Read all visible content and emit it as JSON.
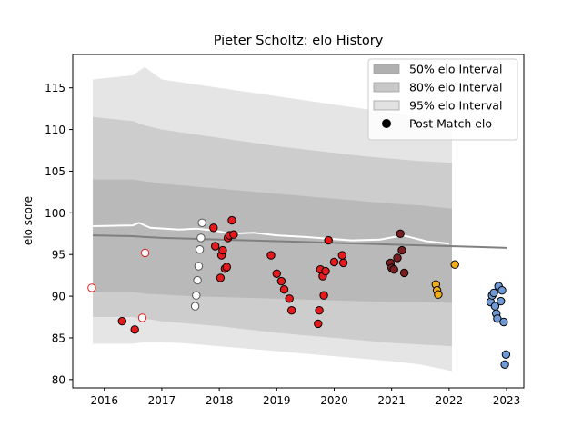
{
  "chart_data": {
    "type": "scatter",
    "title": "Pieter Scholtz: elo History",
    "xlabel": "",
    "ylabel": "elo score",
    "xlim": [
      2015.45,
      2023.3
    ],
    "ylim": [
      79.0,
      119.0
    ],
    "xticks": [
      2016,
      2017,
      2018,
      2019,
      2020,
      2021,
      2022,
      2023
    ],
    "yticks": [
      80,
      85,
      90,
      95,
      100,
      105,
      110,
      115
    ],
    "legend_position": "top-right",
    "legend": [
      {
        "label": "50% elo Interval",
        "kind": "band",
        "color": "#b0b0b0"
      },
      {
        "label": "80% elo Interval",
        "kind": "band",
        "color": "#c8c8c8"
      },
      {
        "label": "95% elo Interval",
        "kind": "band",
        "color": "#e2e2e2"
      },
      {
        "label": "Post Match elo",
        "kind": "marker",
        "color": "#000000"
      }
    ],
    "bands": {
      "x": [
        2015.8,
        2016.5,
        2016.7,
        2017.0,
        2017.5,
        2018.0,
        2018.5,
        2019.0,
        2019.5,
        2020.0,
        2020.5,
        2021.0,
        2021.5,
        2022.05
      ],
      "p95_upper": [
        116.0,
        116.5,
        117.5,
        116.0,
        115.5,
        115.0,
        114.5,
        114.0,
        113.5,
        113.0,
        112.5,
        112.0,
        111.5,
        111.0
      ],
      "p95_lower": [
        84.3,
        84.3,
        84.5,
        84.5,
        84.3,
        84.0,
        83.7,
        83.4,
        83.1,
        82.8,
        82.5,
        82.2,
        81.8,
        81.0
      ],
      "p80_upper": [
        111.5,
        111.0,
        110.5,
        110.0,
        109.5,
        109.0,
        108.5,
        108.0,
        107.6,
        107.2,
        106.8,
        106.5,
        106.2,
        106.0
      ],
      "p80_lower": [
        87.5,
        87.5,
        87.3,
        87.0,
        86.7,
        86.4,
        86.0,
        85.6,
        85.3,
        85.0,
        84.7,
        84.4,
        84.2,
        84.0
      ],
      "p50_upper": [
        104.0,
        104.0,
        103.8,
        103.5,
        103.2,
        102.9,
        102.6,
        102.3,
        102.0,
        101.7,
        101.4,
        101.1,
        100.9,
        100.5
      ],
      "p50_lower": [
        90.5,
        90.5,
        90.3,
        90.2,
        90.0,
        89.9,
        89.8,
        89.7,
        89.6,
        89.5,
        89.4,
        89.3,
        89.3,
        89.2
      ]
    },
    "mean_line": {
      "x": [
        2015.8,
        2016.5,
        2016.7,
        2017.0,
        2017.5,
        2018.0,
        2018.5,
        2019.0,
        2019.5,
        2020.0,
        2020.5,
        2021.0,
        2021.5,
        2022.0,
        2022.5,
        2023.0
      ],
      "y": [
        97.3,
        97.2,
        97.1,
        97.0,
        96.9,
        96.8,
        96.7,
        96.6,
        96.5,
        96.4,
        96.3,
        96.2,
        96.1,
        96.0,
        95.9,
        95.8
      ]
    },
    "white_line": {
      "x": [
        2015.8,
        2016.5,
        2016.6,
        2016.8,
        2017.3,
        2017.6,
        2017.9,
        2018.2,
        2018.6,
        2019.0,
        2019.5,
        2019.9,
        2020.3,
        2020.8,
        2021.2,
        2021.6,
        2022.0
      ],
      "y": [
        98.4,
        98.5,
        98.8,
        98.2,
        98.0,
        98.1,
        97.9,
        97.5,
        97.6,
        97.3,
        97.1,
        96.9,
        96.7,
        96.8,
        97.3,
        96.6,
        96.3
      ]
    },
    "series": [
      {
        "color": "#ffffff",
        "edge": "#e41a1c",
        "x": [
          2015.78,
          2016.66,
          2016.71
        ],
        "y": [
          91.0,
          87.4,
          95.2
        ]
      },
      {
        "color": "#ffffff",
        "edge": "#555555",
        "x": [
          2017.58,
          2017.6,
          2017.62,
          2017.64,
          2017.66,
          2017.68,
          2017.7
        ],
        "y": [
          88.8,
          90.1,
          91.9,
          93.6,
          95.6,
          97.0,
          98.8
        ]
      },
      {
        "color": "#e41a1c",
        "edge": "#000000",
        "x": [
          2016.31,
          2016.53,
          2017.9,
          2017.93,
          2018.02,
          2018.04,
          2018.06,
          2018.1,
          2018.13,
          2018.15,
          2018.18,
          2018.22,
          2018.25,
          2018.9,
          2019.0,
          2019.08,
          2019.13,
          2019.22,
          2019.26,
          2019.72,
          2019.74,
          2019.76,
          2019.8,
          2019.82,
          2019.85,
          2019.9,
          2020.0,
          2020.14,
          2020.16
        ],
        "y": [
          87.0,
          86.0,
          98.2,
          96.0,
          92.2,
          94.9,
          95.5,
          93.3,
          93.5,
          97.0,
          97.3,
          99.1,
          97.4,
          94.9,
          92.7,
          91.8,
          90.8,
          89.7,
          88.3,
          86.7,
          88.3,
          93.2,
          92.4,
          90.1,
          93.0,
          96.7,
          94.1,
          94.9,
          94.0
        ]
      },
      {
        "color": "#7b1e22",
        "edge": "#000000",
        "x": [
          2020.98,
          2021.0,
          2021.04,
          2021.1,
          2021.15,
          2021.18,
          2021.22
        ],
        "y": [
          94.0,
          93.4,
          93.2,
          94.6,
          97.5,
          95.5,
          92.8
        ]
      },
      {
        "color": "#f0ad1e",
        "edge": "#000000",
        "x": [
          2021.77,
          2021.79,
          2021.81,
          2022.1
        ],
        "y": [
          91.4,
          90.7,
          90.2,
          93.8
        ]
      },
      {
        "color": "#6f9ad6",
        "edge": "#000000",
        "x": [
          2022.72,
          2022.75,
          2022.78,
          2022.8,
          2022.82,
          2022.84,
          2022.86,
          2022.9,
          2022.92,
          2022.95,
          2022.97,
          2022.99
        ],
        "y": [
          89.3,
          90.1,
          90.4,
          88.8,
          87.9,
          87.3,
          91.2,
          89.4,
          90.7,
          86.9,
          81.8,
          83.0
        ]
      }
    ]
  }
}
